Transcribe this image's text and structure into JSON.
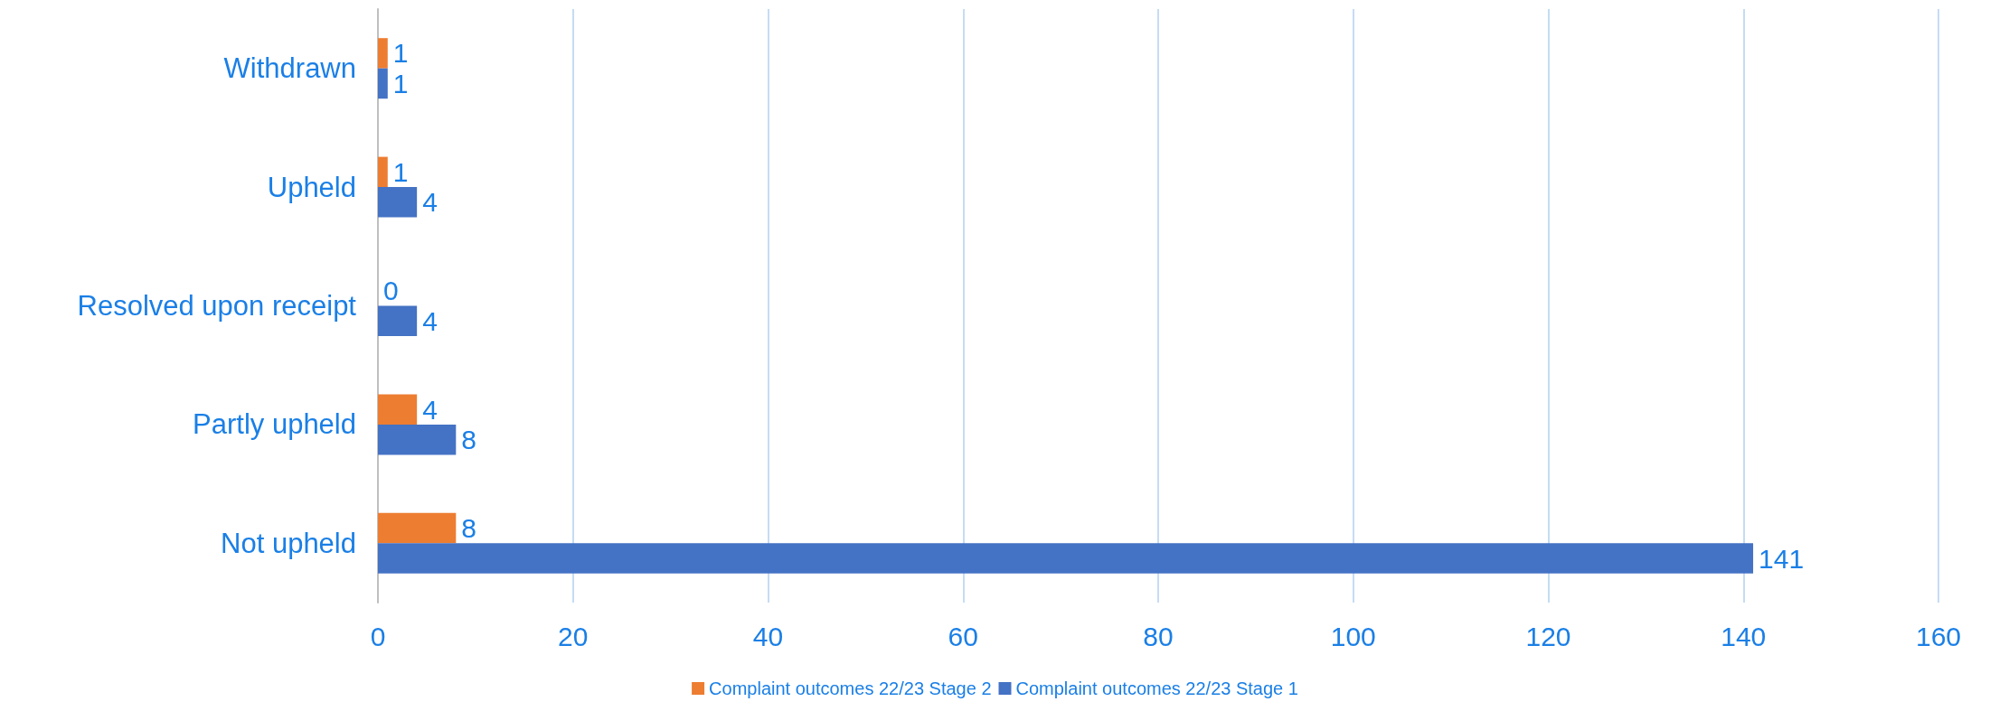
{
  "chart_data": {
    "type": "bar",
    "orientation": "horizontal",
    "categories": [
      "Withdrawn",
      "Upheld",
      "Resolved upon receipt",
      "Partly upheld",
      "Not upheld"
    ],
    "series": [
      {
        "name": "Complaint outcomes 22/23 Stage 2",
        "color": "#ed7d31",
        "values": [
          1,
          1,
          0,
          4,
          8
        ]
      },
      {
        "name": "Complaint outcomes 22/23 Stage 1",
        "color": "#4472c4",
        "values": [
          1,
          4,
          4,
          8,
          141
        ]
      }
    ],
    "xlim": [
      0,
      160
    ],
    "xticks": [
      0,
      20,
      40,
      60,
      80,
      100,
      120,
      140,
      160
    ],
    "grid": "x",
    "legend": "bottom",
    "data_labels": true
  }
}
